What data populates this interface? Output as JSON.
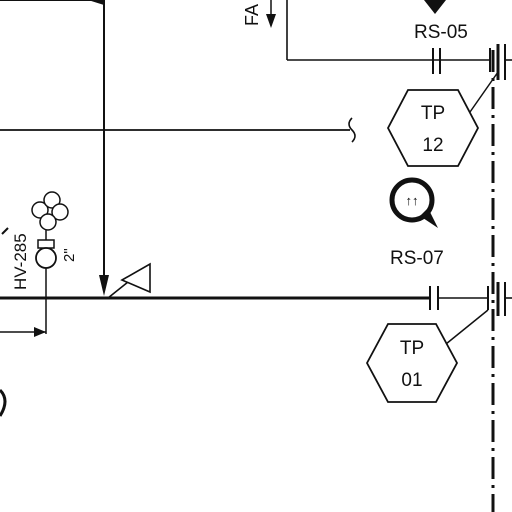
{
  "labels": {
    "rs05": "RS-05",
    "rs07": "RS-07",
    "fa_partial": "FA",
    "hv285": "HV-285",
    "hv_size": "2\""
  },
  "tags": {
    "tp12": {
      "line1": "TP",
      "line2": "12"
    },
    "tp01": {
      "line1": "TP",
      "line2": "01"
    }
  },
  "valve_marker": {
    "symbol": "↑↑"
  }
}
